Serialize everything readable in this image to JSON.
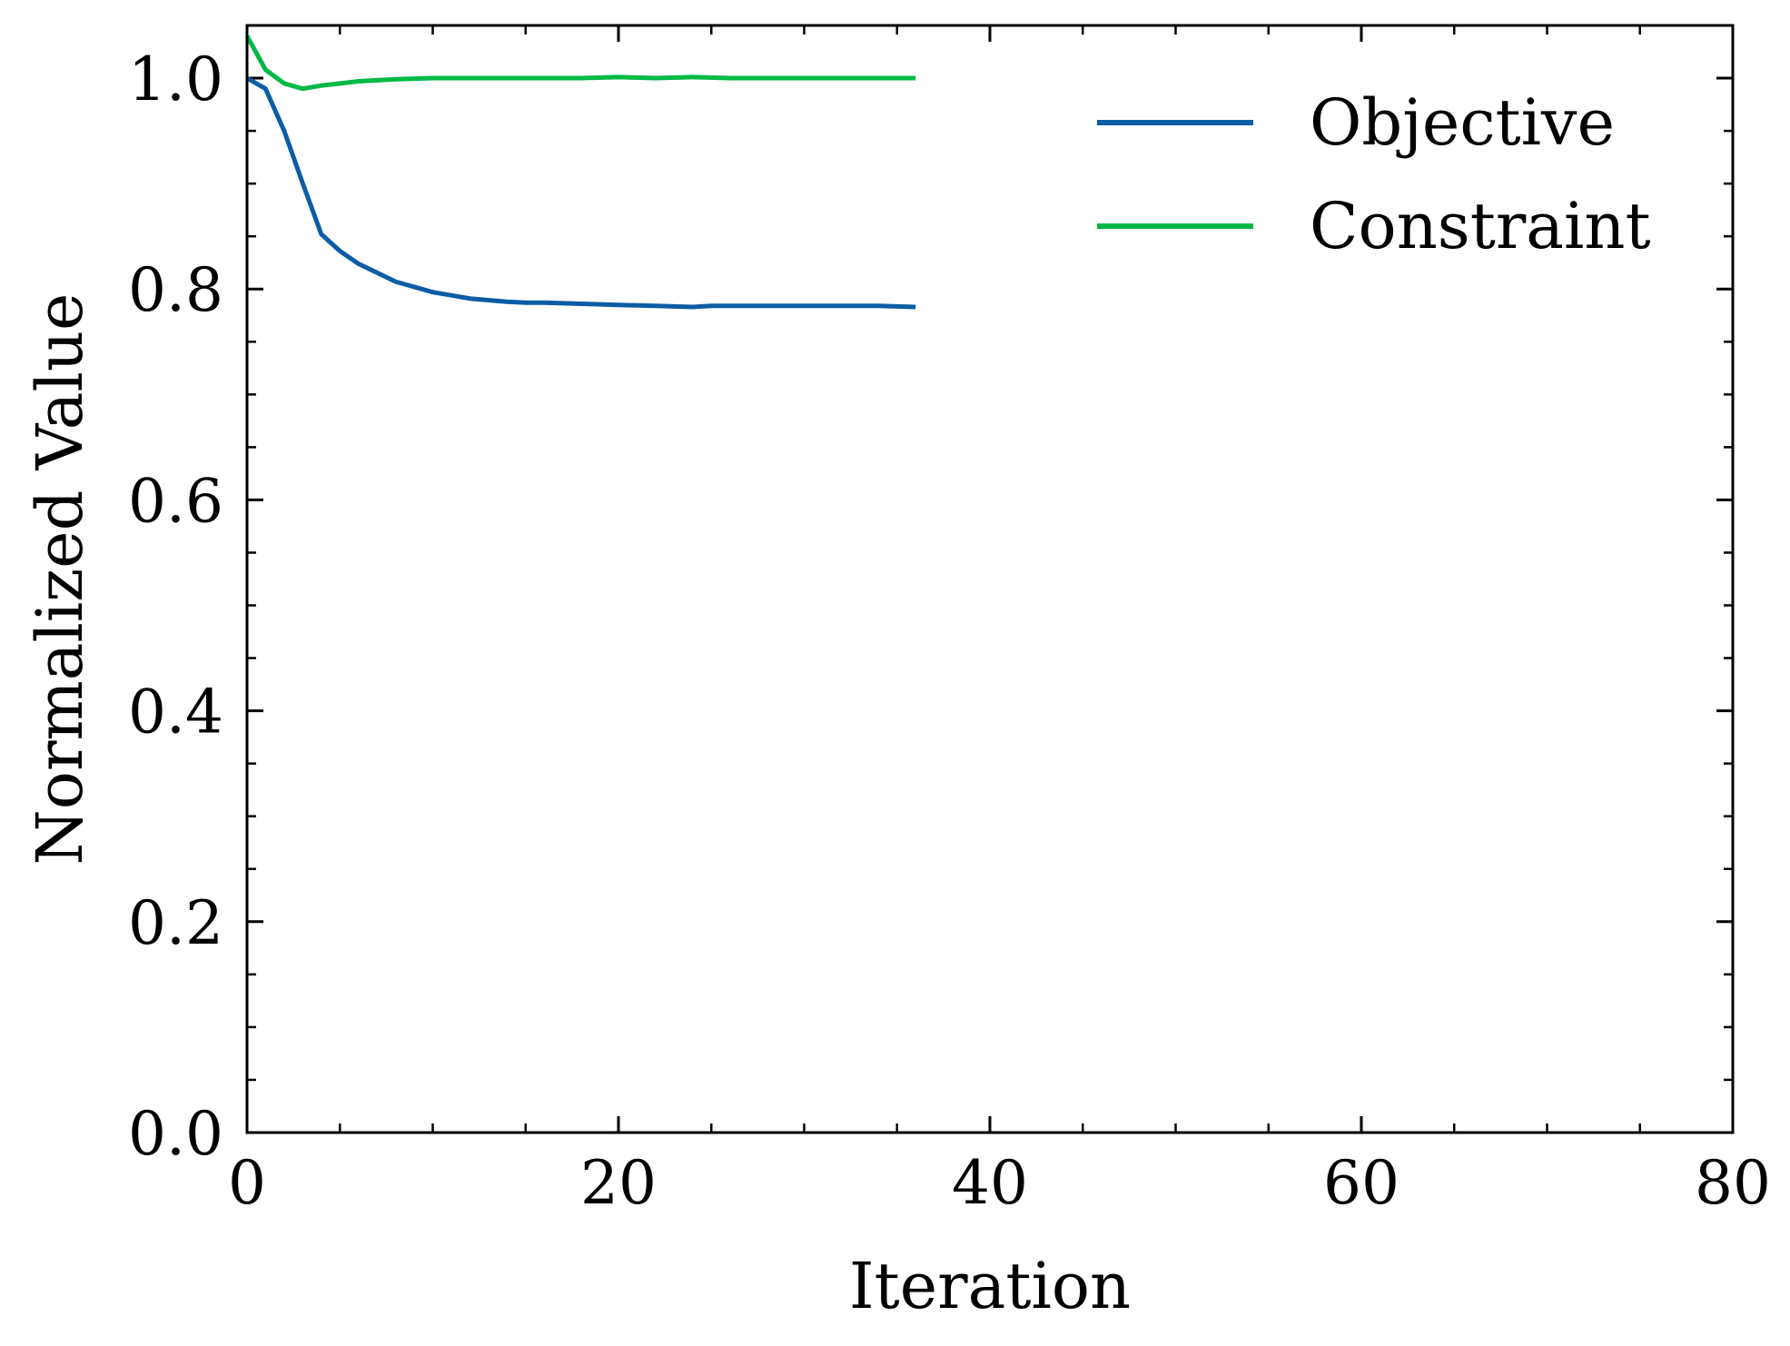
{
  "chart_data": {
    "type": "line",
    "title": "",
    "xlabel": "Iteration",
    "ylabel": "Normalized Value",
    "xlim": [
      0,
      80
    ],
    "ylim": [
      0,
      1.05
    ],
    "xticks": [
      0,
      20,
      40,
      60,
      80
    ],
    "xtick_labels": [
      "0",
      "20",
      "40",
      "60",
      "80"
    ],
    "yticks": [
      0.0,
      0.2,
      0.4,
      0.6,
      0.8,
      1.0
    ],
    "ytick_labels": [
      "0.0",
      "0.2",
      "0.4",
      "0.6",
      "0.8",
      "1.0"
    ],
    "grid": false,
    "legend_position": "top-right",
    "series": [
      {
        "name": "Objective",
        "color": "#0C5DA5",
        "x": [
          0,
          1,
          2,
          3,
          4,
          5,
          6,
          8,
          10,
          12,
          14,
          15,
          16,
          18,
          20,
          22,
          24,
          25,
          26,
          28,
          30,
          32,
          34,
          36
        ],
        "y": [
          1.0,
          0.99,
          0.95,
          0.9,
          0.852,
          0.836,
          0.824,
          0.807,
          0.797,
          0.791,
          0.788,
          0.787,
          0.787,
          0.786,
          0.785,
          0.784,
          0.783,
          0.784,
          0.784,
          0.784,
          0.784,
          0.784,
          0.784,
          0.783
        ]
      },
      {
        "name": "Constraint",
        "color": "#00B945",
        "x": [
          0,
          1,
          2,
          3,
          4,
          5,
          6,
          8,
          10,
          12,
          14,
          16,
          18,
          20,
          22,
          24,
          26,
          28,
          30,
          32,
          34,
          36
        ],
        "y": [
          1.04,
          1.008,
          0.995,
          0.99,
          0.993,
          0.995,
          0.997,
          0.999,
          1.0,
          1.0,
          1.0,
          1.0,
          1.0,
          1.001,
          1.0,
          1.001,
          1.0,
          1.0,
          1.0,
          1.0,
          1.0,
          1.0
        ]
      }
    ]
  }
}
